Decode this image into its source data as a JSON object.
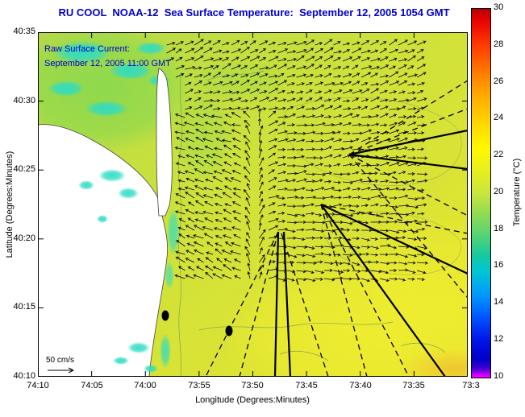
{
  "title": "RU COOL  NOAA-12  Sea Surface Temperature:  September 12, 2005 1054 GMT",
  "overlay": {
    "line1": "Raw Surface Current:",
    "line2": "September 12, 2005 11:00 GMT",
    "scale_label": "50 cm/s"
  },
  "axes": {
    "x_label": "Longitude (Degrees:Minutes)",
    "y_label": "Latitude (Degrees:Minutes)",
    "x_ticks": [
      "74:10",
      "74:05",
      "74:00",
      "73:55",
      "73:50",
      "73:45",
      "73:40",
      "73:35",
      "73:3"
    ],
    "y_ticks": [
      "40:35",
      "40:30",
      "40:25",
      "40:20",
      "40:15",
      "40:10"
    ]
  },
  "colorbar": {
    "label": "Temperature (°C)",
    "ticks": [
      "30",
      "28",
      "26",
      "24",
      "22",
      "20",
      "18",
      "16",
      "14",
      "12",
      "10"
    ],
    "min": 10,
    "max": 30
  },
  "colors": {
    "title_text": "#0000cc",
    "overlay_text": "#0000cc",
    "land": "#ffffff",
    "ocean_base": "#c8e23c",
    "cool_patch": "#2edcc4",
    "warm_patch": "#f0ee2e",
    "vectors": "#000000"
  },
  "chart_data": {
    "type": "heatmap",
    "title": "RU COOL  NOAA-12  Sea Surface Temperature:  September 12, 2005 1054 GMT",
    "xlabel": "Longitude (Degrees:Minutes)",
    "ylabel": "Latitude (Degrees:Minutes)",
    "x_ticks": [
      "74:10",
      "74:05",
      "74:00",
      "73:55",
      "73:50",
      "73:45",
      "73:40",
      "73:35",
      "73:3"
    ],
    "y_ticks": [
      "40:35",
      "40:30",
      "40:25",
      "40:20",
      "40:15",
      "40:10"
    ],
    "x_range": [
      "74:10 W",
      "73:30 W"
    ],
    "y_range": [
      "40:10 N",
      "40:35 N"
    ],
    "colorbar": {
      "label": "Temperature (°C)",
      "range": [
        10,
        30
      ],
      "tick_step": 2,
      "position": "right"
    },
    "grid": false,
    "sst_estimates_c": {
      "offshore_bulk": 21.5,
      "warm_southeast_corner": 23,
      "nearshore_cool_patches": 18,
      "bay_cool_patches": 17
    },
    "overlays": [
      {
        "name": "surface-current-vector-field",
        "label": "Raw Surface Current: September 12, 2005 11:00 GMT",
        "scale_reference": "50 cm/s",
        "pattern": "eastward/northeastward flow offshore turning to onshore-southwestward flow near the coast, forming a fan/swirl east of Sandy Hook"
      },
      {
        "name": "radar-bearing-lines",
        "style": "black solid wedges and dashed rays fanning from the east and south"
      },
      {
        "name": "station-markers",
        "count": 2,
        "style": "filled black ellipses"
      }
    ]
  }
}
